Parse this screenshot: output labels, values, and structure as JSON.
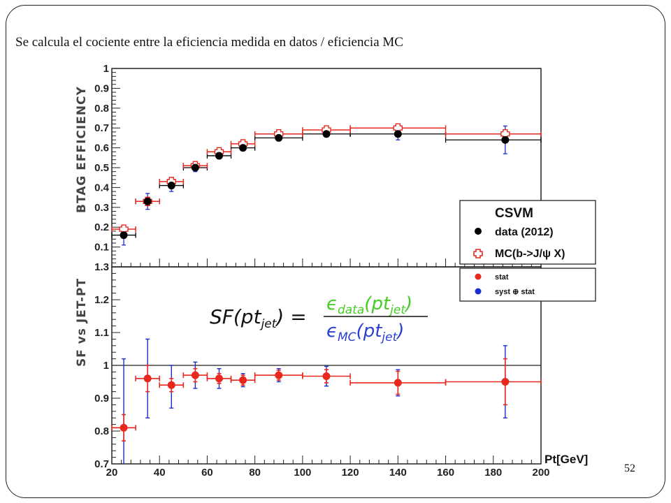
{
  "slide": {
    "caption": "Se calcula el cociente entre la eficiencia medida en datos  / eficiencia MC",
    "number": "52"
  },
  "colors": {
    "data": "#000000",
    "mc": "#e8281e",
    "stat": "#e8281e",
    "syst": "#1a2ecf",
    "formula_num": "#44cc22",
    "formula_den": "#2a3fd0"
  },
  "chart_data": [
    {
      "type": "scatter",
      "ylabel": "BTAG EFFICIENCY",
      "ylim": [
        0,
        1
      ],
      "yticks": [
        "0.1",
        "0.2",
        "0.3",
        "0.4",
        "0.5",
        "0.6",
        "0.7",
        "0.8",
        "0.9",
        "1"
      ],
      "xlim": [
        20,
        200
      ],
      "legend": {
        "title": "CSVM",
        "entries": [
          "data (2012)",
          "MC(b->J/ψ X)"
        ],
        "placement": "right"
      },
      "series": [
        {
          "name": "data (2012)",
          "x": [
            25,
            35,
            45,
            55,
            65,
            75,
            90,
            110,
            140,
            185
          ],
          "xlow": [
            20,
            30,
            40,
            50,
            60,
            70,
            80,
            100,
            120,
            160
          ],
          "xhigh": [
            30,
            40,
            50,
            60,
            70,
            80,
            100,
            120,
            160,
            200
          ],
          "y": [
            0.16,
            0.33,
            0.41,
            0.5,
            0.56,
            0.6,
            0.65,
            0.67,
            0.67,
            0.64
          ],
          "yerr": [
            0.05,
            0.04,
            0.03,
            0.02,
            0.015,
            0.015,
            0.015,
            0.015,
            0.03,
            0.07
          ]
        },
        {
          "name": "MC(b->J/ψ X)",
          "x": [
            25,
            35,
            45,
            55,
            65,
            75,
            90,
            110,
            140,
            185
          ],
          "xlow": [
            20,
            30,
            40,
            50,
            60,
            70,
            80,
            100,
            120,
            160
          ],
          "xhigh": [
            30,
            40,
            50,
            60,
            70,
            80,
            100,
            120,
            160,
            200
          ],
          "y": [
            0.19,
            0.33,
            0.43,
            0.51,
            0.58,
            0.62,
            0.67,
            0.69,
            0.7,
            0.67
          ],
          "yerr": [
            0.01,
            0.01,
            0.01,
            0.01,
            0.01,
            0.01,
            0.01,
            0.01,
            0.01,
            0.01
          ]
        }
      ]
    },
    {
      "type": "scatter",
      "ylabel": "SF vs JET-PT",
      "xlabel": "Pt[GeV]",
      "ylim": [
        0.7,
        1.3
      ],
      "xlim": [
        20,
        200
      ],
      "yticks": [
        "0.7",
        "0.8",
        "0.9",
        "1",
        "1.1",
        "1.2",
        "1.3"
      ],
      "xticks": [
        "20",
        "40",
        "60",
        "80",
        "100",
        "120",
        "140",
        "160",
        "180",
        "200"
      ],
      "reference_line": 1,
      "legend": {
        "entries": [
          "stat",
          "syst ⊕ stat"
        ],
        "placement": "right"
      },
      "formula": {
        "lhs": "SF(pt",
        "lhs_sub": "jet",
        "num": "ϵ",
        "num_sub": "data",
        "num_arg": "(pt",
        "num_arg_sub": "jet",
        "den": "ϵ",
        "den_sub": "MC",
        "den_arg": "(pt",
        "den_arg_sub": "jet"
      },
      "series": [
        {
          "name": "stat",
          "x": [
            25,
            35,
            45,
            55,
            65,
            75,
            90,
            110,
            140,
            185
          ],
          "xlow": [
            20,
            30,
            40,
            50,
            60,
            70,
            80,
            100,
            120,
            160
          ],
          "xhigh": [
            30,
            40,
            50,
            60,
            70,
            80,
            100,
            120,
            160,
            200
          ],
          "y": [
            0.81,
            0.96,
            0.94,
            0.97,
            0.96,
            0.955,
            0.97,
            0.967,
            0.947,
            0.95
          ],
          "stat_err": [
            0.04,
            0.04,
            0.02,
            0.02,
            0.015,
            0.015,
            0.015,
            0.02,
            0.035,
            0.07
          ]
        },
        {
          "name": "syst ⊕ stat",
          "x": [
            25,
            35,
            45,
            55,
            65,
            75,
            90,
            110,
            140,
            185
          ],
          "y": [
            0.81,
            0.96,
            0.94,
            0.97,
            0.96,
            0.955,
            0.97,
            0.967,
            0.947,
            0.95
          ],
          "total_err_up": [
            0.21,
            0.12,
            0.06,
            0.04,
            0.03,
            0.02,
            0.02,
            0.03,
            0.04,
            0.11
          ],
          "total_err_down": [
            0.21,
            0.12,
            0.07,
            0.04,
            0.03,
            0.02,
            0.02,
            0.03,
            0.04,
            0.11
          ]
        }
      ]
    }
  ]
}
